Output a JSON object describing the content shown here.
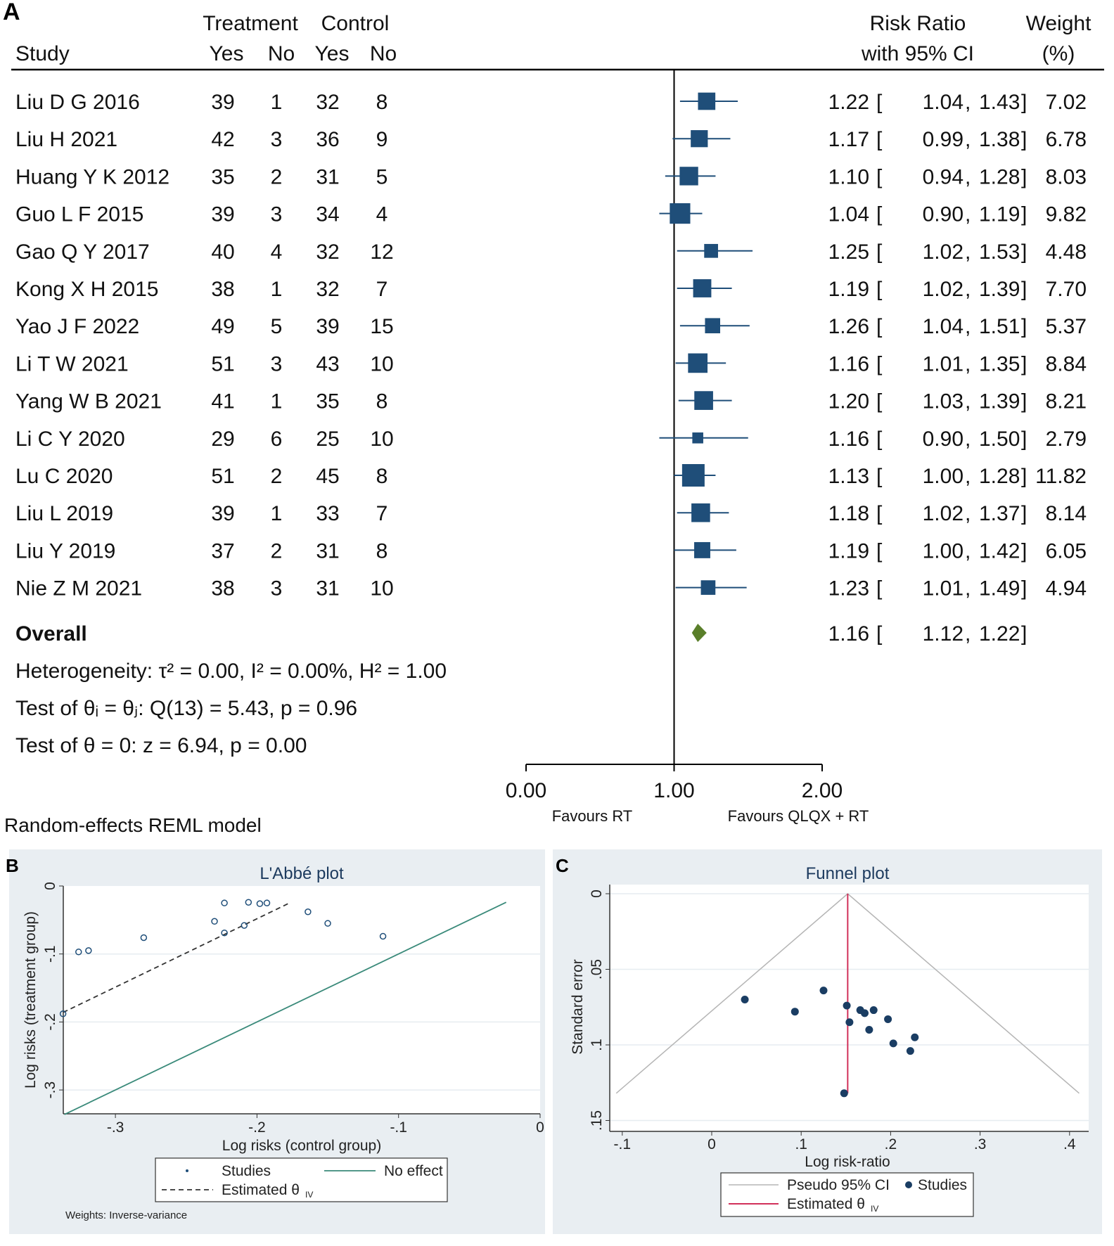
{
  "panels": {
    "a": "A",
    "b": "B",
    "c": "C"
  },
  "forest": {
    "headers": {
      "treatment": "Treatment",
      "control": "Control",
      "study": "Study",
      "yes": "Yes",
      "no": "No",
      "rr1": "Risk Ratio",
      "rr2": "with 95% CI",
      "w1": "Weight",
      "w2": "(%)"
    },
    "studies": [
      {
        "name": "Liu D G 2016",
        "ty": 39,
        "tn": 1,
        "cy": 32,
        "cn": 8,
        "rr": "1.22",
        "lo": "1.04",
        "hi": "1.43",
        "w": "7.02"
      },
      {
        "name": "Liu H 2021",
        "ty": 42,
        "tn": 3,
        "cy": 36,
        "cn": 9,
        "rr": "1.17",
        "lo": "0.99",
        "hi": "1.38",
        "w": "6.78"
      },
      {
        "name": "Huang Y K 2012",
        "ty": 35,
        "tn": 2,
        "cy": 31,
        "cn": 5,
        "rr": "1.10",
        "lo": "0.94",
        "hi": "1.28",
        "w": "8.03"
      },
      {
        "name": "Guo L F 2015",
        "ty": 39,
        "tn": 3,
        "cy": 34,
        "cn": 4,
        "rr": "1.04",
        "lo": "0.90",
        "hi": "1.19",
        "w": "9.82"
      },
      {
        "name": "Gao Q Y 2017",
        "ty": 40,
        "tn": 4,
        "cy": 32,
        "cn": 12,
        "rr": "1.25",
        "lo": "1.02",
        "hi": "1.53",
        "w": "4.48"
      },
      {
        "name": "Kong X H 2015",
        "ty": 38,
        "tn": 1,
        "cy": 32,
        "cn": 7,
        "rr": "1.19",
        "lo": "1.02",
        "hi": "1.39",
        "w": "7.70"
      },
      {
        "name": "Yao J F 2022",
        "ty": 49,
        "tn": 5,
        "cy": 39,
        "cn": 15,
        "rr": "1.26",
        "lo": "1.04",
        "hi": "1.51",
        "w": "5.37"
      },
      {
        "name": "Li T W 2021",
        "ty": 51,
        "tn": 3,
        "cy": 43,
        "cn": 10,
        "rr": "1.16",
        "lo": "1.01",
        "hi": "1.35",
        "w": "8.84"
      },
      {
        "name": "Yang W B 2021",
        "ty": 41,
        "tn": 1,
        "cy": 35,
        "cn": 8,
        "rr": "1.20",
        "lo": "1.03",
        "hi": "1.39",
        "w": "8.21"
      },
      {
        "name": "Li C Y 2020",
        "ty": 29,
        "tn": 6,
        "cy": 25,
        "cn": 10,
        "rr": "1.16",
        "lo": "0.90",
        "hi": "1.50",
        "w": "2.79"
      },
      {
        "name": "Lu C 2020",
        "ty": 51,
        "tn": 2,
        "cy": 45,
        "cn": 8,
        "rr": "1.13",
        "lo": "1.00",
        "hi": "1.28",
        "w": "11.82"
      },
      {
        "name": "Liu L 2019",
        "ty": 39,
        "tn": 1,
        "cy": 33,
        "cn": 7,
        "rr": "1.18",
        "lo": "1.02",
        "hi": "1.37",
        "w": "8.14"
      },
      {
        "name": "Liu Y 2019",
        "ty": 37,
        "tn": 2,
        "cy": 31,
        "cn": 8,
        "rr": "1.19",
        "lo": "1.00",
        "hi": "1.42",
        "w": "6.05"
      },
      {
        "name": "Nie Z M 2021",
        "ty": 38,
        "tn": 3,
        "cy": 31,
        "cn": 10,
        "rr": "1.23",
        "lo": "1.01",
        "hi": "1.49",
        "w": "4.94"
      }
    ],
    "overall": {
      "name": "Overall",
      "rr": "1.16",
      "lo": "1.12",
      "hi": "1.22"
    },
    "stats": [
      "Heterogeneity: τ² = 0.00, I² = 0.00%, H² = 1.00",
      "Test of θᵢ = θⱼ: Q(13) = 5.43, p = 0.96",
      "Test of θ = 0: z = 6.94, p = 0.00"
    ],
    "axis_ticks": [
      "0.00",
      "1.00",
      "2.00"
    ],
    "favours_left": "Favours RT",
    "favours_right": "Favours QLQX + RT",
    "model": "Random-effects REML model",
    "colors": {
      "square": "#1f4e79",
      "diamond": "#5a7f2a"
    }
  },
  "chart_data": [
    {
      "type": "scatter",
      "title": "L'Abbé plot",
      "xlabel": "Log risks (control group)",
      "ylabel": "Log risks (treatment group)",
      "xlim": [
        -0.336,
        0
      ],
      "ylim": [
        -0.336,
        0
      ],
      "xticks": [
        "-.3",
        "-.2",
        "-.1",
        "0"
      ],
      "xtick_vals": [
        -0.3,
        -0.2,
        -0.1,
        0
      ],
      "yticks": [
        "0",
        "-.1",
        "-.2",
        "-.3"
      ],
      "ytick_vals": [
        0,
        -0.1,
        -0.2,
        -0.3
      ],
      "points": [
        [
          -0.326,
          -0.097
        ],
        [
          -0.319,
          -0.095
        ],
        [
          -0.28,
          -0.076
        ],
        [
          -0.23,
          -0.052
        ],
        [
          -0.223,
          -0.025
        ],
        [
          -0.223,
          -0.069
        ],
        [
          -0.209,
          -0.058
        ],
        [
          -0.206,
          -0.024
        ],
        [
          -0.198,
          -0.026
        ],
        [
          -0.193,
          -0.025
        ],
        [
          -0.164,
          -0.038
        ],
        [
          -0.15,
          -0.055
        ],
        [
          -0.111,
          -0.074
        ],
        [
          -0.337,
          -0.188
        ]
      ],
      "estimated_line": [
        [
          -0.337,
          -0.186
        ],
        [
          -0.176,
          -0.024
        ]
      ],
      "no_effect_line": [
        [
          -0.336,
          -0.336
        ],
        [
          -0.024,
          -0.024
        ]
      ],
      "legend": {
        "studies": "Studies",
        "no_effect": "No effect",
        "estimated": "Estimated θ",
        "estimated_sub": "IV"
      },
      "note": "Weights: Inverse-variance",
      "colors": {
        "points": "#1f4e79",
        "no_effect": "#3a8a7a",
        "estimated": "#333333"
      }
    },
    {
      "type": "scatter",
      "title": "Funnel plot",
      "xlabel": "Log risk-ratio",
      "ylabel": "Standard error",
      "xlim": [
        -0.115,
        0.418
      ],
      "ylim": [
        -0.006,
        0.155
      ],
      "xticks": [
        "-.1",
        "0",
        ".1",
        ".2",
        ".3",
        ".4"
      ],
      "xtick_vals": [
        -0.1,
        0,
        0.1,
        0.2,
        0.3,
        0.4
      ],
      "yticks": [
        "0",
        ".05",
        ".1",
        ".15"
      ],
      "ytick_vals": [
        0,
        0.05,
        0.1,
        0.15
      ],
      "theta": 0.152,
      "se_max": 0.132,
      "points": [
        [
          0.037,
          0.07
        ],
        [
          0.093,
          0.078
        ],
        [
          0.125,
          0.064
        ],
        [
          0.151,
          0.074
        ],
        [
          0.154,
          0.085
        ],
        [
          0.166,
          0.077
        ],
        [
          0.171,
          0.079
        ],
        [
          0.181,
          0.077
        ],
        [
          0.197,
          0.083
        ],
        [
          0.176,
          0.09
        ],
        [
          0.227,
          0.095
        ],
        [
          0.203,
          0.099
        ],
        [
          0.222,
          0.104
        ],
        [
          0.148,
          0.132
        ]
      ],
      "legend": {
        "ci": "Pseudo 95% CI",
        "studies": "Studies",
        "estimated": "Estimated θ",
        "estimated_sub": "IV"
      },
      "colors": {
        "points": "#1a3d63",
        "ci": "#b5b5b5",
        "estimated": "#d1305a"
      }
    }
  ]
}
